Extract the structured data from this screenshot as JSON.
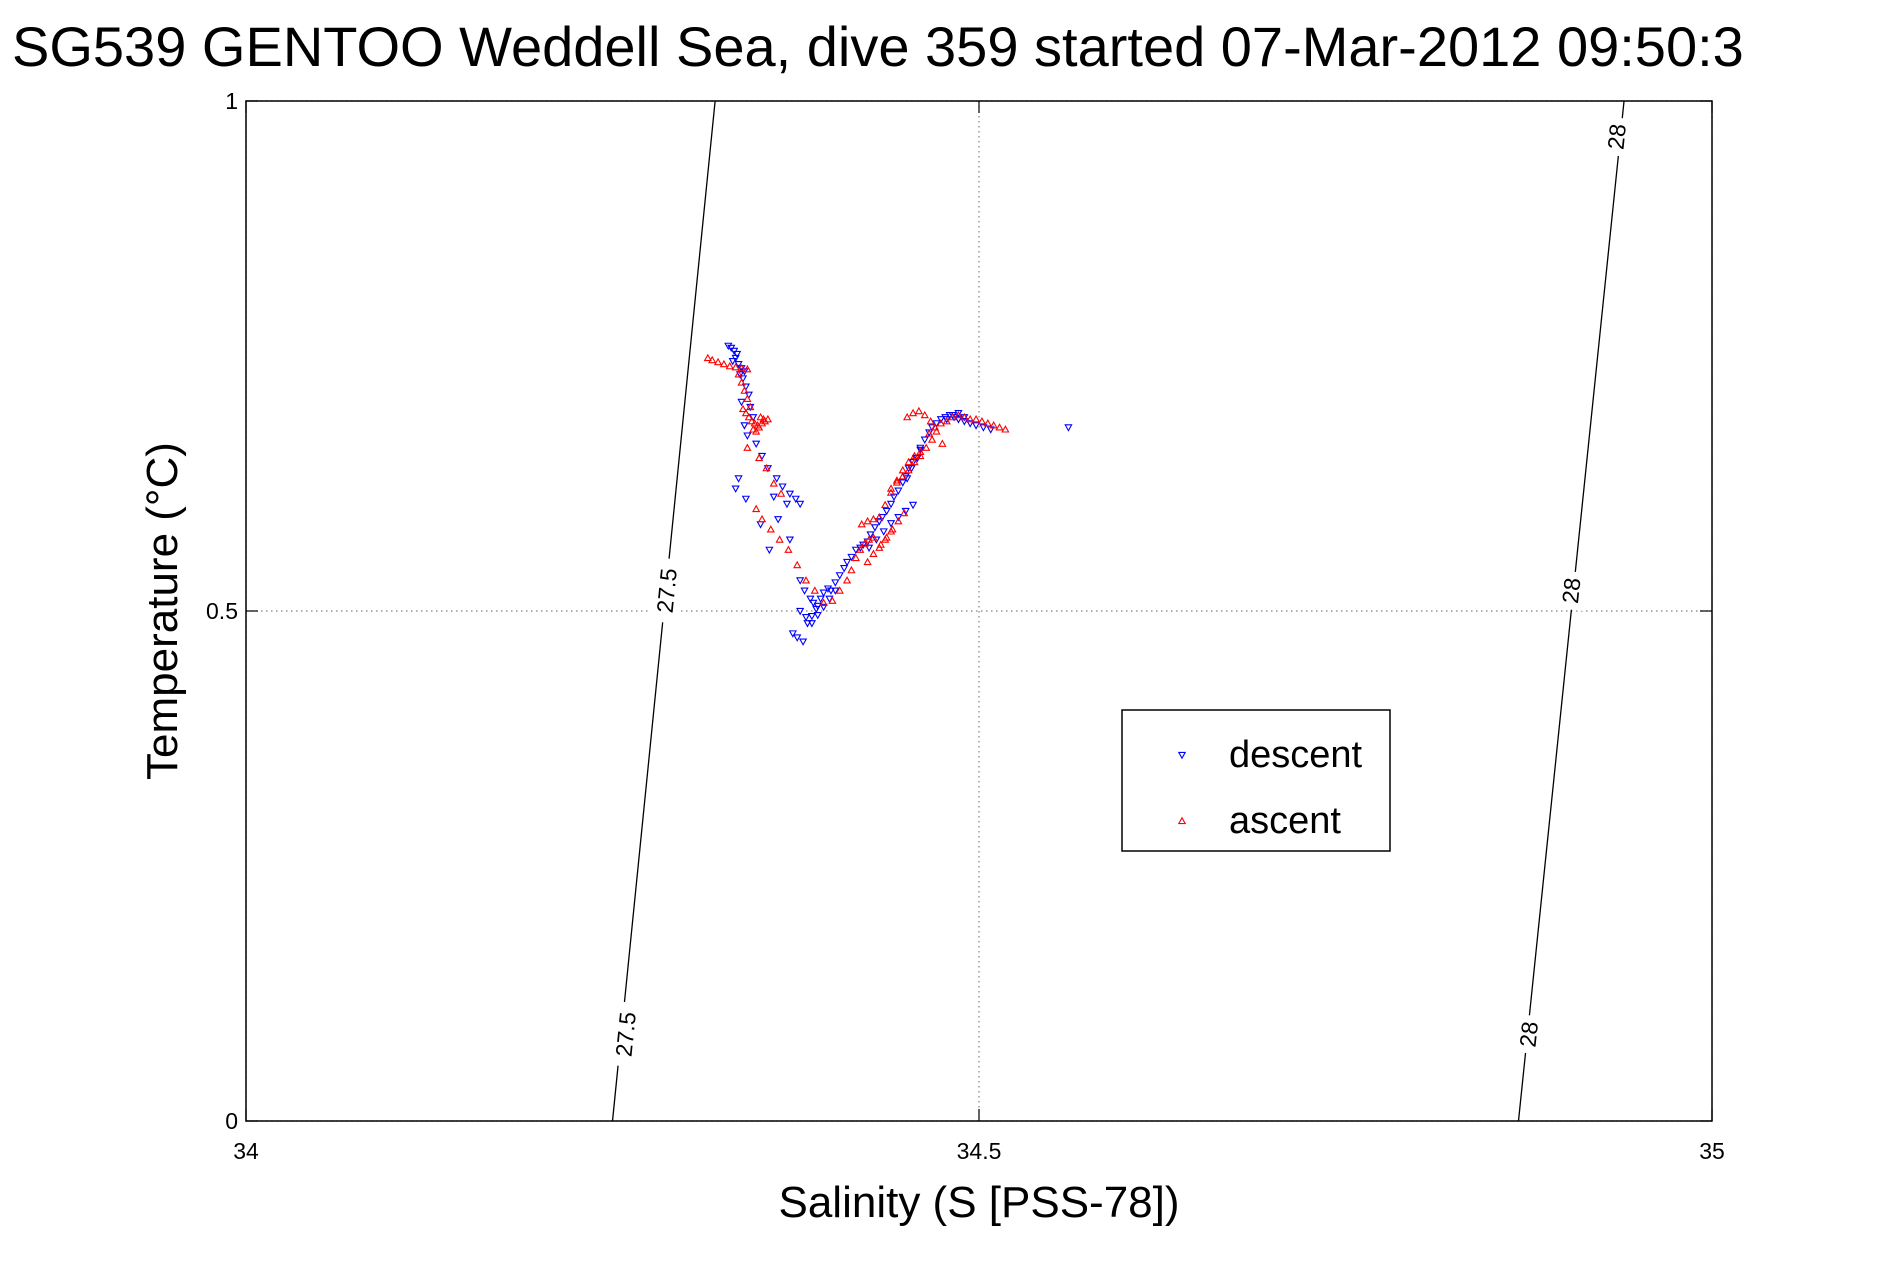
{
  "chart_data": {
    "type": "scatter",
    "title": "SG539 GENTOO Weddell Sea, dive 359 started 07-Mar-2012 09:50:3",
    "xlabel": "Salinity (S [PSS-78])",
    "ylabel": "Temperature (°C)",
    "xlim": [
      34,
      35
    ],
    "ylim": [
      0,
      1
    ],
    "xticks": [
      34,
      34.5,
      35
    ],
    "xtick_labels": [
      "34",
      "34.5",
      "35"
    ],
    "yticks": [
      0,
      0.5,
      1
    ],
    "ytick_labels": [
      "0",
      "0.5",
      "1"
    ],
    "grid": true,
    "legend": {
      "position": "right-middle",
      "entries": [
        "descent",
        "ascent"
      ]
    },
    "colors": {
      "descent": "#0000ff",
      "ascent": "#ff0000",
      "isopycnal": "#000000",
      "grid": "#808080"
    },
    "contours": [
      {
        "label": "27.5",
        "points": [
          [
            34.25,
            0
          ],
          [
            34.32,
            1
          ]
        ],
        "label_positions": [
          [
            34.259,
            0.085
          ],
          [
            34.287,
            0.52
          ]
        ]
      },
      {
        "label": "28",
        "points": [
          [
            34.868,
            0
          ],
          [
            34.94,
            1
          ]
        ],
        "label_positions": [
          [
            34.875,
            0.085
          ],
          [
            34.904,
            0.52
          ],
          [
            34.935,
            0.965
          ]
        ]
      }
    ],
    "series": [
      {
        "name": "descent",
        "marker": "triangle-down",
        "x": [
          34.329,
          34.331,
          34.333,
          34.335,
          34.334,
          34.332,
          34.336,
          34.338,
          34.34,
          34.337,
          34.339,
          34.341,
          34.343,
          34.338,
          34.344,
          34.346,
          34.34,
          34.342,
          34.348,
          34.352,
          34.356,
          34.362,
          34.366,
          34.371,
          34.375,
          34.378,
          34.36,
          34.334,
          34.336,
          34.341,
          34.351,
          34.357,
          34.363,
          34.369,
          34.371,
          34.378,
          34.381,
          34.385,
          34.387,
          34.39,
          34.392,
          34.394,
          34.397,
          34.399,
          34.402,
          34.405,
          34.408,
          34.41,
          34.413,
          34.416,
          34.419,
          34.421,
          34.424,
          34.426,
          34.429,
          34.432,
          34.434,
          34.437,
          34.44,
          34.442,
          34.445,
          34.448,
          34.45,
          34.452,
          34.455,
          34.458,
          34.46,
          34.463,
          34.466,
          34.468,
          34.471,
          34.474,
          34.477,
          34.48,
          34.483,
          34.486,
          34.49,
          34.494,
          34.498,
          34.503,
          34.508,
          34.373,
          34.376,
          34.38,
          34.383,
          34.386,
          34.389,
          34.378,
          34.382,
          34.386,
          34.39,
          34.394,
          34.398,
          34.402,
          34.425,
          34.43,
          34.435,
          34.44,
          34.445,
          34.45,
          34.455,
          34.451,
          34.454,
          34.457,
          34.46,
          34.478,
          34.482,
          34.486,
          34.49,
          34.561
        ],
        "y": [
          0.76,
          0.758,
          0.755,
          0.752,
          0.748,
          0.745,
          0.742,
          0.738,
          0.735,
          0.732,
          0.728,
          0.72,
          0.712,
          0.705,
          0.7,
          0.69,
          0.682,
          0.672,
          0.664,
          0.652,
          0.64,
          0.63,
          0.622,
          0.615,
          0.61,
          0.605,
          0.612,
          0.62,
          0.63,
          0.61,
          0.585,
          0.56,
          0.59,
          0.605,
          0.57,
          0.53,
          0.52,
          0.512,
          0.508,
          0.505,
          0.512,
          0.518,
          0.522,
          0.52,
          0.528,
          0.535,
          0.542,
          0.548,
          0.553,
          0.56,
          0.562,
          0.565,
          0.568,
          0.575,
          0.582,
          0.588,
          0.592,
          0.598,
          0.605,
          0.612,
          0.618,
          0.626,
          0.632,
          0.64,
          0.646,
          0.65,
          0.66,
          0.668,
          0.675,
          0.68,
          0.684,
          0.688,
          0.69,
          0.692,
          0.69,
          0.688,
          0.686,
          0.684,
          0.682,
          0.68,
          0.678,
          0.478,
          0.474,
          0.47,
          0.488,
          0.495,
          0.502,
          0.5,
          0.494,
          0.488,
          0.496,
          0.504,
          0.512,
          0.52,
          0.562,
          0.57,
          0.578,
          0.586,
          0.592,
          0.598,
          0.604,
          0.63,
          0.64,
          0.65,
          0.658,
          0.688,
          0.692,
          0.694,
          0.69,
          0.68
        ]
      },
      {
        "name": "ascent",
        "marker": "triangle-up",
        "x": [
          34.315,
          34.318,
          34.322,
          34.326,
          34.33,
          34.334,
          34.338,
          34.342,
          34.336,
          34.338,
          34.34,
          34.342,
          34.344,
          34.339,
          34.341,
          34.343,
          34.345,
          34.347,
          34.349,
          34.351,
          34.353,
          34.346,
          34.348,
          34.35,
          34.352,
          34.354,
          34.356,
          34.342,
          34.35,
          34.355,
          34.36,
          34.365,
          34.348,
          34.352,
          34.358,
          34.364,
          34.37,
          34.376,
          34.382,
          34.388,
          34.394,
          34.4,
          34.405,
          34.41,
          34.413,
          34.416,
          34.419,
          34.422,
          34.425,
          34.428,
          34.42,
          34.424,
          34.428,
          34.432,
          34.436,
          34.44,
          34.444,
          34.448,
          34.452,
          34.456,
          34.46,
          34.44,
          34.444,
          34.448,
          34.452,
          34.456,
          34.46,
          34.464,
          34.468,
          34.466,
          34.47,
          34.474,
          34.478,
          34.482,
          34.486,
          34.49,
          34.494,
          34.498,
          34.502,
          34.506,
          34.51,
          34.514,
          34.518,
          34.451,
          34.455,
          34.459,
          34.463,
          34.467,
          34.471,
          34.475,
          34.433,
          34.437,
          34.441,
          34.445,
          34.449,
          34.424,
          34.428,
          34.432,
          34.436,
          34.44
        ],
        "y": [
          0.748,
          0.746,
          0.744,
          0.742,
          0.74,
          0.739,
          0.738,
          0.737,
          0.732,
          0.724,
          0.716,
          0.708,
          0.7,
          0.698,
          0.694,
          0.69,
          0.686,
          0.684,
          0.682,
          0.69,
          0.688,
          0.678,
          0.676,
          0.68,
          0.684,
          0.686,
          0.688,
          0.66,
          0.65,
          0.64,
          0.625,
          0.615,
          0.6,
          0.59,
          0.58,
          0.57,
          0.56,
          0.545,
          0.53,
          0.52,
          0.508,
          0.51,
          0.52,
          0.53,
          0.54,
          0.552,
          0.56,
          0.566,
          0.57,
          0.572,
          0.585,
          0.588,
          0.59,
          0.592,
          0.604,
          0.616,
          0.628,
          0.638,
          0.646,
          0.652,
          0.656,
          0.62,
          0.626,
          0.632,
          0.638,
          0.646,
          0.652,
          0.66,
          0.668,
          0.674,
          0.68,
          0.684,
          0.686,
          0.69,
          0.692,
          0.69,
          0.688,
          0.688,
          0.686,
          0.684,
          0.682,
          0.68,
          0.678,
          0.69,
          0.694,
          0.696,
          0.692,
          0.686,
          0.676,
          0.664,
          0.565,
          0.572,
          0.58,
          0.588,
          0.596,
          0.548,
          0.556,
          0.562,
          0.57,
          0.578
        ]
      }
    ]
  }
}
